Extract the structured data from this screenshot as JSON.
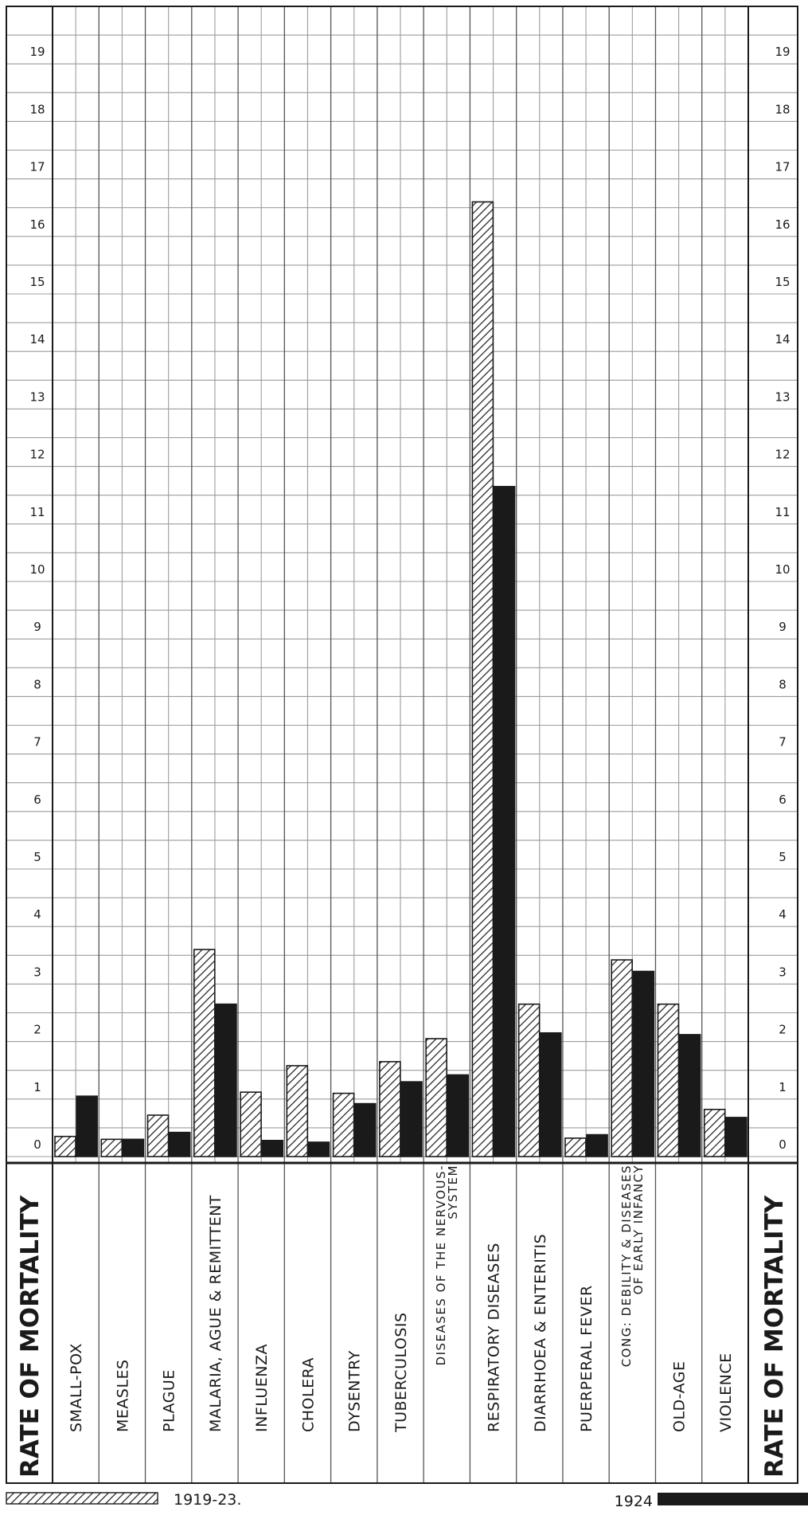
{
  "chart_data": {
    "type": "bar",
    "categories": [
      [
        "SMALL-POX"
      ],
      [
        "MEASLES"
      ],
      [
        "PLAGUE"
      ],
      [
        "MALARIA, AGUE & REMITTENT"
      ],
      [
        "INFLUENZA"
      ],
      [
        "CHOLERA"
      ],
      [
        "DYSENTRY"
      ],
      [
        "TUBERCULOSIS"
      ],
      [
        "DISEASES OF THE NERVOUS-",
        "SYSTEM"
      ],
      [
        "RESPIRATORY DISEASES"
      ],
      [
        "DIARRHOEA & ENTERITIS"
      ],
      [
        "PUERPERAL FEVER"
      ],
      [
        "CONG: DEBILITY & DISEASES",
        "OF EARLY INFANCY"
      ],
      [
        "OLD-AGE"
      ],
      [
        "VIOLENCE"
      ]
    ],
    "series": [
      {
        "name": "1919-23.",
        "pattern": "hatched",
        "values": [
          0.35,
          0.3,
          0.72,
          3.6,
          1.12,
          1.58,
          1.1,
          1.65,
          2.05,
          16.6,
          2.65,
          0.32,
          3.42,
          2.65,
          0.82
        ]
      },
      {
        "name": "1924",
        "pattern": "solid",
        "values": [
          1.05,
          0.3,
          0.42,
          2.65,
          0.28,
          0.25,
          0.92,
          1.3,
          1.42,
          11.65,
          2.15,
          0.38,
          3.22,
          2.12,
          0.68
        ]
      }
    ],
    "yticks": [
      "0",
      "1",
      "2",
      "3",
      "4",
      "5",
      "6",
      "7",
      "8",
      "9",
      "10",
      "11",
      "12",
      "13",
      "14",
      "15",
      "16",
      "17",
      "18",
      "19"
    ],
    "ylim": [
      0,
      20
    ],
    "ylabel": "RATE OF MORTALITY",
    "grid": true,
    "legend_position": "bottom",
    "colors": {
      "ink": "#1a1a1a",
      "grid": "#9c9c9c",
      "background": "#ffffff"
    }
  }
}
